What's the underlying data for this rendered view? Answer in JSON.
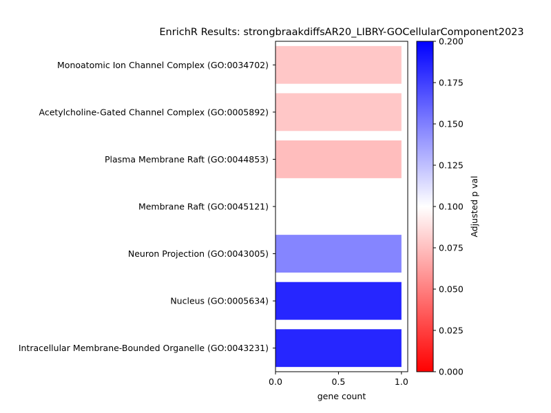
{
  "chart_data": {
    "type": "bar",
    "orientation": "horizontal",
    "title": "EnrichR Results: strongbraakdiffsAR20_LIBRY-GOCellularComponent2023",
    "xlabel": "gene count",
    "ylabel": "",
    "xlim": [
      0,
      1.05
    ],
    "x_ticks": [
      "0.0",
      "0.5",
      "1.0"
    ],
    "categories": [
      "Monoatomic Ion Channel Complex (GO:0034702)",
      "Acetylcholine-Gated Channel Complex (GO:0005892)",
      "Plasma Membrane Raft (GO:0044853)",
      "Membrane Raft (GO:0045121)",
      "Neuron Projection (GO:0043005)",
      "Nucleus (GO:0005634)",
      "Intracellular Membrane-Bounded Organelle (GO:0043231)"
    ],
    "values": [
      1,
      1,
      1,
      1,
      1,
      1,
      1
    ],
    "adjusted_p": [
      0.078,
      0.078,
      0.074,
      0.1,
      0.148,
      0.185,
      0.185
    ],
    "colorbar": {
      "label": "Adjusted p val",
      "range": [
        0,
        0.2
      ],
      "ticks": [
        "0.000",
        "0.025",
        "0.050",
        "0.075",
        "0.100",
        "0.125",
        "0.150",
        "0.175",
        "0.200"
      ],
      "colors": [
        "#ff0000",
        "#ffffff",
        "#0000ff"
      ]
    },
    "grid": false,
    "legend": "none"
  }
}
